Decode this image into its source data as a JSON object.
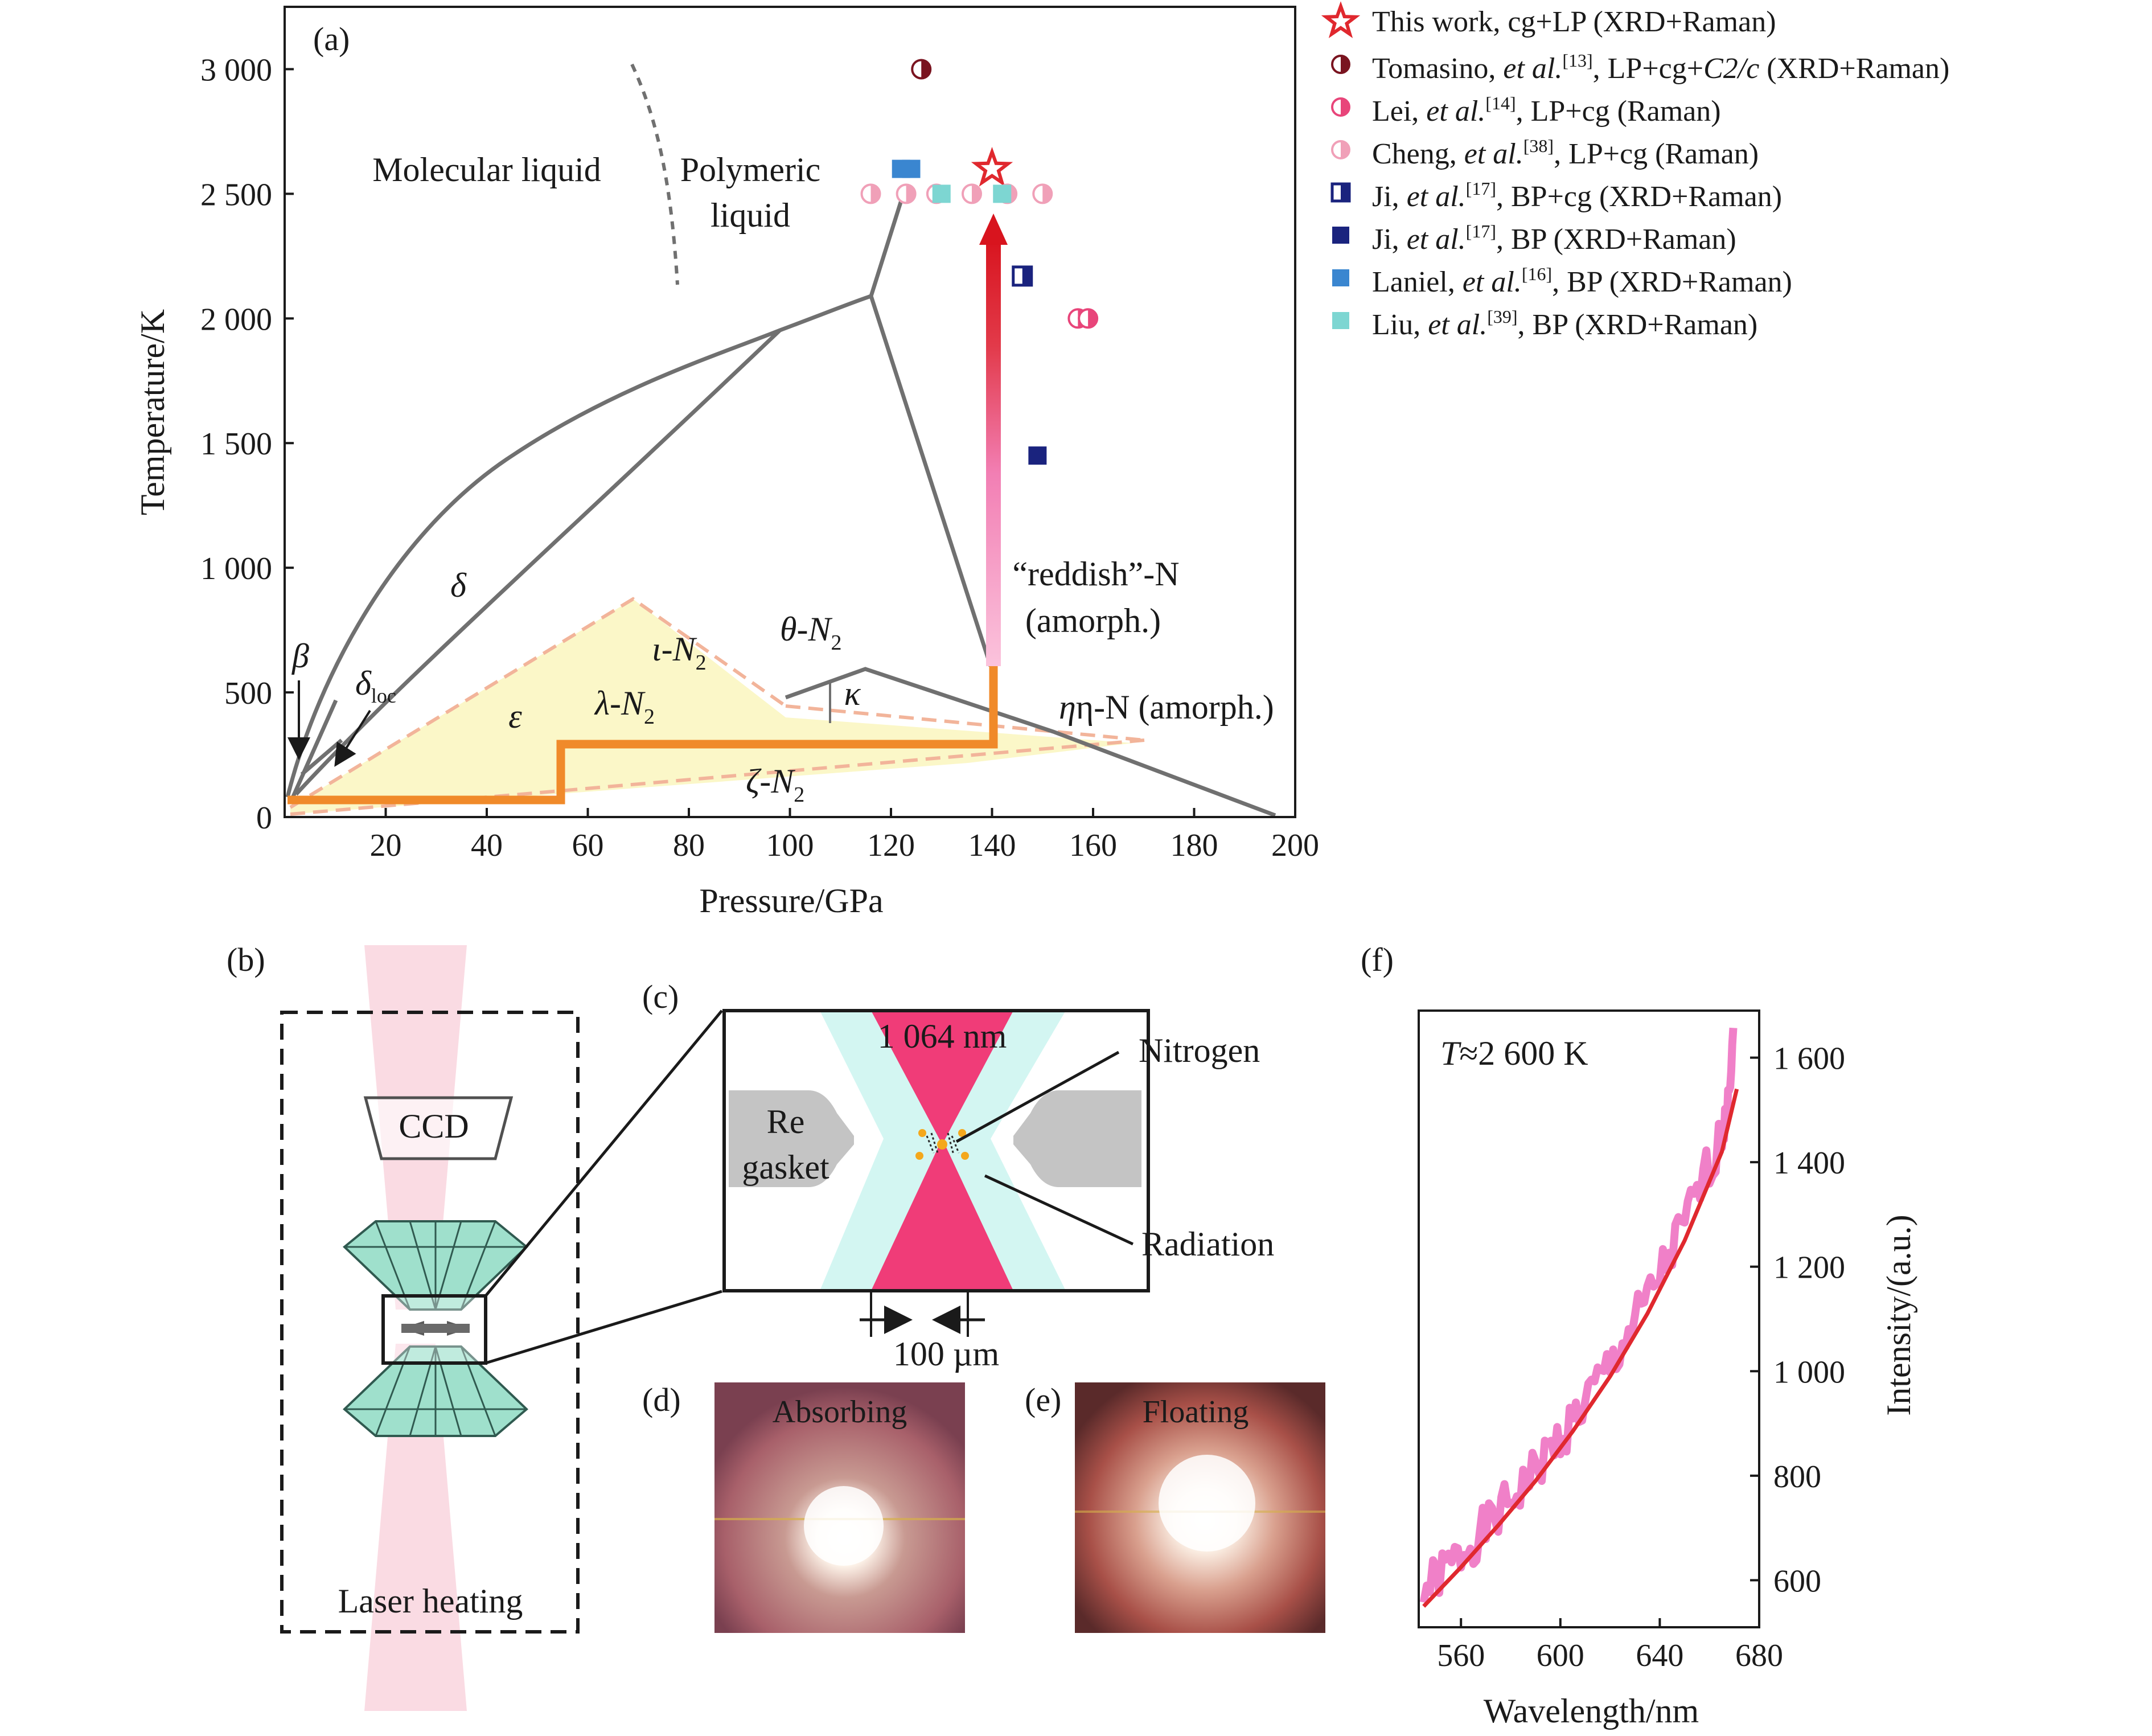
{
  "panels": {
    "a": "(a)",
    "b": "(b)",
    "c": "(c)",
    "d": "(d)",
    "e": "(e)",
    "f": "(f)"
  },
  "chart_data": [
    {
      "type": "scatter",
      "panel": "(a)",
      "xlabel": "Pressure/GPa",
      "ylabel": "Temperature/K",
      "xlim": [
        0,
        200
      ],
      "ylim": [
        0,
        3250
      ],
      "xticks": [
        20,
        40,
        60,
        80,
        100,
        120,
        140,
        160,
        180,
        200
      ],
      "xtick_labels": [
        "20",
        "40",
        "60",
        "80",
        "100",
        "120",
        "140",
        "160",
        "180",
        "200"
      ],
      "yticks": [
        0,
        500,
        1000,
        1500,
        2000,
        2500,
        3000
      ],
      "ytick_labels": [
        "0",
        "500",
        "1 000",
        "1 500",
        "2 000",
        "2 500",
        "3 000"
      ],
      "legend_position": "right",
      "series": [
        {
          "name": "This work, cg+LP (XRD+Raman)",
          "marker": "star",
          "color": "#e0282e",
          "points": [
            [
              140,
              2600
            ]
          ]
        },
        {
          "name": "Tomasino, et al.[13], LP+cg+C2/c (XRD+Raman)",
          "marker": "circle-half",
          "color": "#7a1420",
          "points": [
            [
              126,
              3000
            ]
          ]
        },
        {
          "name": "Lei, et al.[14], LP+cg (Raman)",
          "marker": "circle-half",
          "color": "#e8457a",
          "points": [
            [
              157,
              2000
            ],
            [
              159,
              2000
            ]
          ]
        },
        {
          "name": "Cheng, et al.[38], LP+cg (Raman)",
          "marker": "circle-half",
          "color": "#f0a0b8",
          "points": [
            [
              116,
              2500
            ],
            [
              123,
              2500
            ],
            [
              129,
              2500
            ],
            [
              136,
              2500
            ],
            [
              143,
              2500
            ],
            [
              150,
              2500
            ]
          ]
        },
        {
          "name": "Ji, et al.[17], BP+cg (XRD+Raman)",
          "marker": "square-half",
          "color": "#1a237e",
          "points": [
            [
              146,
              2170
            ]
          ]
        },
        {
          "name": "Ji, et al.[17], BP (XRD+Raman)",
          "marker": "square",
          "color": "#1a237e",
          "points": [
            [
              149,
              1450
            ]
          ]
        },
        {
          "name": "Laniel, et al.[16], BP (XRD+Raman)",
          "marker": "square",
          "color": "#3a86d0",
          "points": [
            [
              122,
              2600
            ],
            [
              124,
              2600
            ]
          ]
        },
        {
          "name": "Liu, et al.[39], BP (XRD+Raman)",
          "marker": "square",
          "color": "#7dd6d2",
          "points": [
            [
              130,
              2500
            ],
            [
              142,
              2500
            ]
          ]
        }
      ],
      "phase_labels": {
        "molecular_liquid": "Molecular liquid",
        "polymeric_liquid_1": "Polymeric",
        "polymeric_liquid_2": "liquid",
        "delta": "δ",
        "beta": "β",
        "delta_loc": "δ",
        "delta_loc_sub": "loc",
        "epsilon": "ε",
        "iota": "ι-N",
        "lambda": "λ-N",
        "theta": "θ-N",
        "kappa": "κ",
        "zeta": "ζ-N",
        "sub2": "2",
        "reddish_1": "“reddish”-N",
        "reddish_2": "(amorph.)",
        "eta": "η-N (amorph.)"
      },
      "legend_text": {
        "l1": "This work, cg+LP (XRD+Raman)",
        "l2a": "Tomasino, ",
        "l2b": "et al.",
        "l2c": "[13]",
        "l2d": ", LP+cg+",
        "l2e": "C2/c",
        "l2f": " (XRD+Raman)",
        "l3a": "Lei, ",
        "l3b": "et al.",
        "l3c": "[14]",
        "l3d": ", LP+cg (Raman)",
        "l4a": "Cheng, ",
        "l4b": "et al.",
        "l4c": "[38]",
        "l4d": ", LP+cg (Raman)",
        "l5a": "Ji, ",
        "l5b": "et al.",
        "l5c": "[17]",
        "l5d": ", BP+cg (XRD+Raman)",
        "l6a": "Ji, ",
        "l6b": "et al.",
        "l6c": "[17]",
        "l6d": ", BP (XRD+Raman)",
        "l7a": "Laniel, ",
        "l7b": "et al.",
        "l7c": "[16]",
        "l7d": ", BP (XRD+Raman)",
        "l8a": "Liu, ",
        "l8b": "et al.",
        "l8c": "[39]",
        "l8d": ", BP (XRD+Raman)"
      },
      "path_this_work": [
        [
          0,
          80
        ],
        [
          55,
          80
        ],
        [
          55,
          300
        ],
        [
          140,
          300
        ],
        [
          140,
          2500
        ]
      ]
    },
    {
      "type": "line",
      "panel": "(f)",
      "annotation_italic": "T",
      "annotation_rest": "≈2 600 K",
      "xlabel": "Wavelength/nm",
      "ylabel": "Intensity/(a.u.)",
      "xlim": [
        543,
        680
      ],
      "ylim": [
        510,
        1690
      ],
      "xticks": [
        560,
        600,
        640,
        680
      ],
      "xtick_labels": [
        "560",
        "600",
        "640",
        "680"
      ],
      "yticks": [
        600,
        800,
        1000,
        1200,
        1400,
        1600
      ],
      "ytick_labels": [
        "600",
        "800",
        "1 000",
        "1 200",
        "1 400",
        "1 600"
      ],
      "series": [
        {
          "name": "",
          "color": "#f080c8",
          "x": [
            545,
            560,
            575,
            590,
            605,
            620,
            635,
            650,
            665,
            670
          ],
          "y": [
            580,
            650,
            725,
            810,
            905,
            1010,
            1135,
            1280,
            1450,
            1640
          ]
        },
        {
          "name": "",
          "color": "#e0282e",
          "x": [
            545,
            560,
            575,
            590,
            605,
            620,
            635,
            650,
            665,
            671
          ],
          "y": [
            550,
            625,
            705,
            790,
            885,
            990,
            1110,
            1250,
            1420,
            1540
          ]
        }
      ]
    }
  ],
  "schematic": {
    "ccd": "CCD",
    "laser_heating": "Laser heating",
    "wavelength_label": "1 064 nm",
    "re_1": "Re",
    "re_2": "gasket",
    "nitrogen": "Nitrogen",
    "radiation": "Radiation",
    "scale": "100 µm"
  },
  "photos": {
    "absorbing": "Absorbing",
    "floating": "Floating"
  }
}
